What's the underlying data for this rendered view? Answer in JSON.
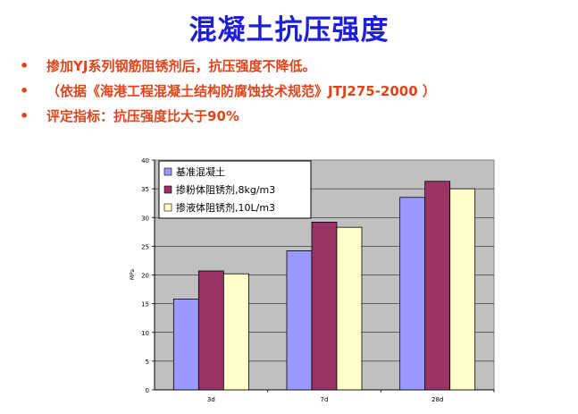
{
  "slide": {
    "title": "混凝土抗压强度",
    "bullets": [
      "掺加YJ系列钢筋阻锈剂后，抗压强度不降低。",
      "（依据《海港工程混凝土结构防腐蚀技术规范》JTJ275-2000 ）",
      "评定指标：抗压强度比大于90%"
    ],
    "bullet_symbol": "•"
  },
  "colors": {
    "title": "#1f1fd6",
    "bullet_text": "#e0441a",
    "plot_background": "#c0c0c0"
  },
  "chart_data": {
    "type": "bar",
    "title": "",
    "xlabel": "",
    "ylabel": "MPa",
    "ylim": [
      0,
      40
    ],
    "yticks": [
      0,
      5,
      10,
      15,
      20,
      25,
      30,
      35,
      40
    ],
    "categories": [
      "3d",
      "7d",
      "28d"
    ],
    "grid": true,
    "legend_position": "top-left",
    "series": [
      {
        "name": "基准混凝土",
        "color": "#9999ff",
        "values": [
          15.8,
          24.2,
          33.5
        ]
      },
      {
        "name": "掺粉体阻锈剂,8kg/m3",
        "color": "#993366",
        "values": [
          20.7,
          29.2,
          36.3
        ]
      },
      {
        "name": "掺液体阻锈剂,10L/m3",
        "color": "#ffffcc",
        "values": [
          20.2,
          28.3,
          35.0
        ]
      }
    ]
  }
}
